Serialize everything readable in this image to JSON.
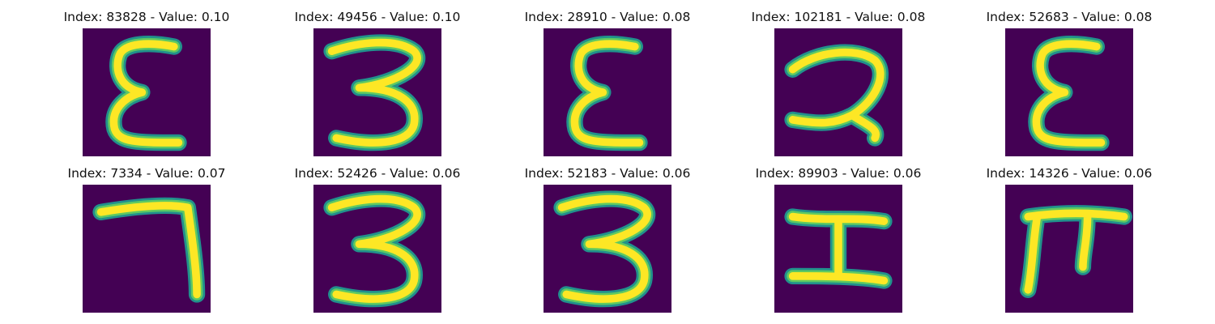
{
  "colors": {
    "background": "#440154",
    "stroke_mid": "#21918c",
    "stroke_edge": "#5ec962",
    "stroke_core": "#fde725"
  },
  "panels": [
    {
      "title": "Index: 83828 - Value: 0.10",
      "depicts": "glyph-epsilon"
    },
    {
      "title": "Index: 49456 - Value: 0.10",
      "depicts": "glyph-three"
    },
    {
      "title": "Index: 28910 - Value: 0.08",
      "depicts": "glyph-epsilon"
    },
    {
      "title": "Index: 102181 - Value: 0.08",
      "depicts": "glyph-two"
    },
    {
      "title": "Index: 52683 - Value: 0.08",
      "depicts": "glyph-epsilon"
    },
    {
      "title": "Index: 7334 - Value: 0.07",
      "depicts": "glyph-seven"
    },
    {
      "title": "Index: 52426 - Value: 0.06",
      "depicts": "glyph-three"
    },
    {
      "title": "Index: 52183 - Value: 0.06",
      "depicts": "glyph-three"
    },
    {
      "title": "Index: 89903 - Value: 0.06",
      "depicts": "glyph-i-beam"
    },
    {
      "title": "Index: 14326 - Value: 0.06",
      "depicts": "glyph-pi"
    }
  ]
}
